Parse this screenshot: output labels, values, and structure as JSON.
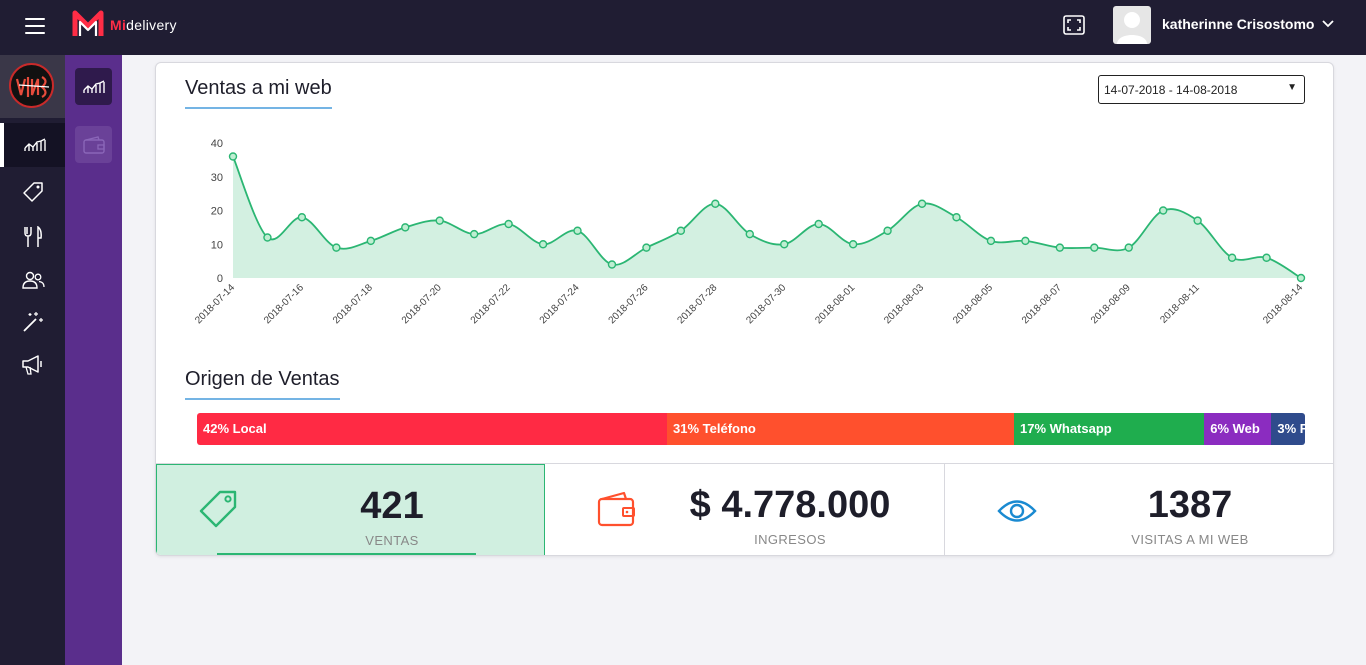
{
  "header": {
    "brand_mi": "Mi",
    "brand_rest": "delivery",
    "username": "katherinne Crisostomo"
  },
  "sidebar": {
    "items": [
      {
        "icon": "chart-line-icon",
        "active": true
      },
      {
        "icon": "tag-icon"
      },
      {
        "icon": "utensils-icon"
      },
      {
        "icon": "users-icon"
      },
      {
        "icon": "magic-wand-icon"
      },
      {
        "icon": "megaphone-icon"
      }
    ],
    "sub_items": [
      {
        "icon": "chart-line-icon",
        "active": true
      },
      {
        "icon": "wallet-icon"
      }
    ]
  },
  "sales_web": {
    "title": "Ventas a mi web",
    "date_range": "14-07-2018 - 14-08-2018"
  },
  "chart_data": {
    "type": "area",
    "x": [
      "2018-07-14",
      "2018-07-15",
      "2018-07-16",
      "2018-07-17",
      "2018-07-18",
      "2018-07-19",
      "2018-07-20",
      "2018-07-21",
      "2018-07-22",
      "2018-07-23",
      "2018-07-24",
      "2018-07-25",
      "2018-07-26",
      "2018-07-27",
      "2018-07-28",
      "2018-07-29",
      "2018-07-30",
      "2018-07-31",
      "2018-08-01",
      "2018-08-02",
      "2018-08-03",
      "2018-08-04",
      "2018-08-05",
      "2018-08-06",
      "2018-08-07",
      "2018-08-08",
      "2018-08-09",
      "2018-08-10",
      "2018-08-11",
      "2018-08-12",
      "2018-08-13",
      "2018-08-14"
    ],
    "x_tick_labels": [
      "2018-07-14",
      "2018-07-16",
      "2018-07-18",
      "2018-07-20",
      "2018-07-22",
      "2018-07-24",
      "2018-07-26",
      "2018-07-28",
      "2018-07-30",
      "2018-08-01",
      "2018-08-03",
      "2018-08-05",
      "2018-08-07",
      "2018-08-09",
      "2018-08-11",
      "2018-08-14"
    ],
    "values": [
      36,
      12,
      18,
      9,
      11,
      15,
      17,
      13,
      16,
      10,
      14,
      4,
      9,
      14,
      22,
      13,
      10,
      16,
      10,
      14,
      22,
      18,
      11,
      11,
      9,
      9,
      9,
      20,
      17,
      6,
      6,
      0
    ],
    "ylim": [
      0,
      40
    ],
    "y_ticks": [
      0,
      10,
      20,
      30,
      40
    ],
    "line_color": "#2bb673",
    "fill_color": "#d3f0e1"
  },
  "origin": {
    "title": "Origen de Ventas",
    "segments": [
      {
        "label": "42% Local",
        "percent": 42,
        "color": "#ff2a44"
      },
      {
        "label": "31% Teléfono",
        "percent": 31,
        "color": "#ff502d"
      },
      {
        "label": "17% Whatsapp",
        "percent": 17,
        "color": "#1fad4e"
      },
      {
        "label": "6% Web",
        "percent": 6,
        "color": "#8b2cc0"
      },
      {
        "label": "3% F",
        "percent": 3,
        "color": "#2f4b8c"
      }
    ]
  },
  "stats": {
    "sales": {
      "value": "421",
      "label": "VENTAS",
      "icon": "tag-icon",
      "color": "#2bb673"
    },
    "income": {
      "value": "$ 4.778.000",
      "label": "INGRESOS",
      "icon": "wallet-icon",
      "color": "#ff502d"
    },
    "visits": {
      "value": "1387",
      "label": "VISITAS A MI WEB",
      "icon": "eye-icon",
      "color": "#1a8ad1"
    }
  }
}
